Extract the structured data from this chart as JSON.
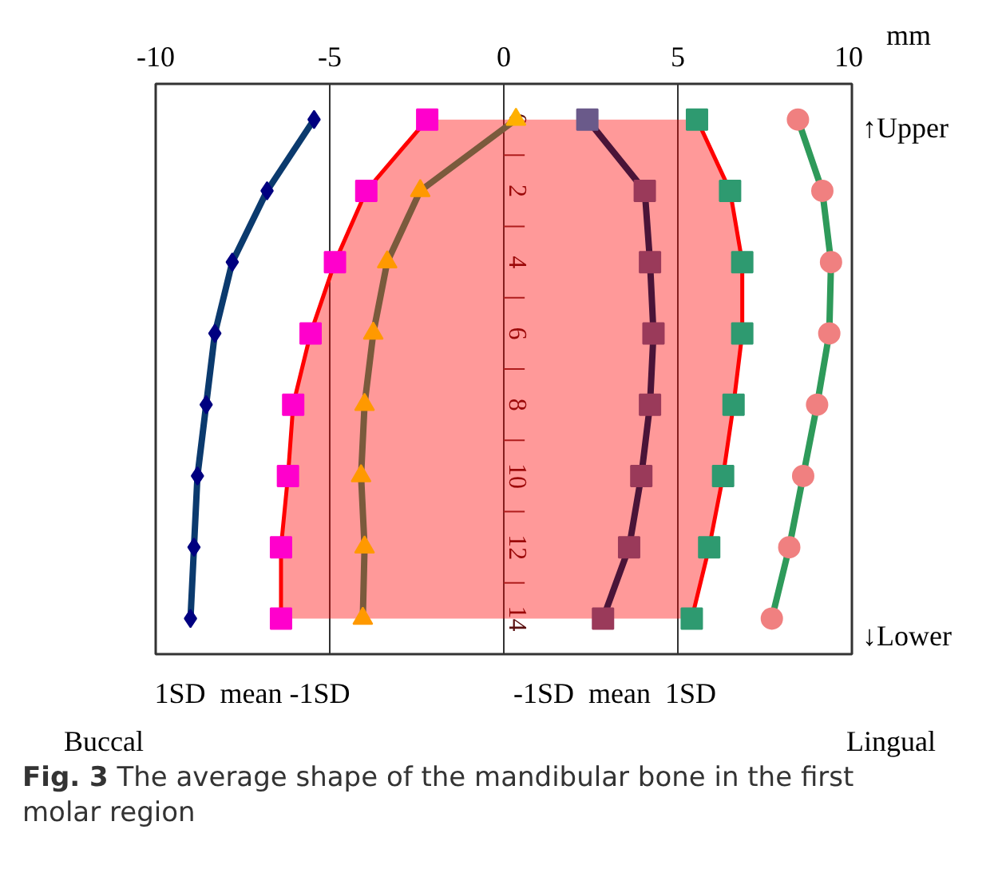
{
  "chart_data": {
    "type": "line",
    "orientation": "horizontal",
    "xlabel": "mm",
    "xlim": [
      -10,
      10
    ],
    "xticks": [
      -10,
      -5,
      0,
      5,
      10
    ],
    "ylim": [
      15,
      -1
    ],
    "yticks": [
      0,
      {
        "value": 1,
        "label": null
      },
      2,
      {
        "value": 3,
        "label": null
      },
      4,
      {
        "value": 5,
        "label": null
      },
      6,
      {
        "value": 7,
        "label": null
      },
      8,
      {
        "value": 9,
        "label": null
      },
      10,
      {
        "value": 11,
        "label": null
      },
      12,
      {
        "value": 13,
        "label": null
      },
      14
    ],
    "grid": "x",
    "series": [
      {
        "color": "#0b3a6e",
        "marker": "diamond",
        "colors": [
          "#000080",
          "#000080",
          "#000080",
          "#000080",
          "#000080",
          "#000080",
          "#000080",
          "#000080"
        ],
        "x": [
          0,
          2,
          4,
          6,
          8,
          10,
          12,
          14
        ],
        "values": [
          -5.45,
          -6.8,
          -7.8,
          -8.3,
          -8.55,
          -8.8,
          -8.9,
          -9.0
        ]
      },
      {
        "type": "area",
        "color": "#ff0000",
        "marker": "square",
        "colors": [
          "#ff00cc",
          "#ff00cc",
          "#ff00cc",
          "#ff00cc",
          "#ff00cc",
          "#ff00cc",
          "#ff00cc",
          "#ff00cc"
        ],
        "x": [
          0,
          2,
          4,
          6,
          8,
          10,
          12,
          14
        ],
        "values": [
          -2.2,
          -3.95,
          -4.85,
          -5.55,
          -6.05,
          -6.2,
          -6.4,
          -6.4
        ]
      },
      {
        "color": "#7a5a3c",
        "marker": "triangle",
        "colors": [
          "#ffb000",
          "#ff9900",
          "#ff9900",
          "#ff9900",
          "#ff9900",
          "#ff9900",
          "#ff9900",
          "#ff9900"
        ],
        "x": [
          0,
          2,
          4,
          6,
          8,
          10,
          12,
          14
        ],
        "values": [
          0.35,
          -2.4,
          -3.35,
          -3.75,
          -4.0,
          -4.1,
          -4.0,
          -4.05
        ]
      },
      {
        "color": "#4a1438",
        "marker": "square",
        "colors": [
          "#6a5a8a",
          "#9a3a5a",
          "#9a3a5a",
          "#9a3a5a",
          "#9a3a5a",
          "#9a3a5a",
          "#9a3a5a",
          "#9a3a5a"
        ],
        "x": [
          0,
          2,
          4,
          6,
          8,
          10,
          12,
          14
        ],
        "values": [
          2.4,
          4.05,
          4.2,
          4.3,
          4.2,
          3.95,
          3.6,
          2.85
        ]
      },
      {
        "type": "area",
        "color": "#ff0000",
        "marker": "square",
        "colors": [
          "#2e9a70",
          "#2e9a70",
          "#2e9a70",
          "#2e9a70",
          "#2e9a70",
          "#2e9a70",
          "#2e9a70",
          "#2e9a70"
        ],
        "x": [
          0,
          2,
          4,
          6,
          8,
          10,
          12,
          14
        ],
        "values": [
          5.55,
          6.5,
          6.85,
          6.85,
          6.6,
          6.3,
          5.9,
          5.4
        ]
      },
      {
        "color": "#2e9a5a",
        "marker": "circle",
        "colors": [
          "#f08080",
          "#f08080",
          "#f08080",
          "#f08080",
          "#f08080",
          "#f08080",
          "#f08080",
          "#f08080"
        ],
        "x": [
          0,
          2,
          4,
          6,
          8,
          10,
          12,
          14
        ],
        "values": [
          8.45,
          9.15,
          9.4,
          9.35,
          9.0,
          8.6,
          8.2,
          7.7
        ]
      }
    ],
    "annotations": [
      "↑Upper",
      "↓Lower",
      "1SD  mean -1SD",
      "-1SD  mean  1SD",
      "Buccal",
      "Lingual",
      "Fig. 3 The average shape of the mandibular bone in the first molar region"
    ]
  }
}
